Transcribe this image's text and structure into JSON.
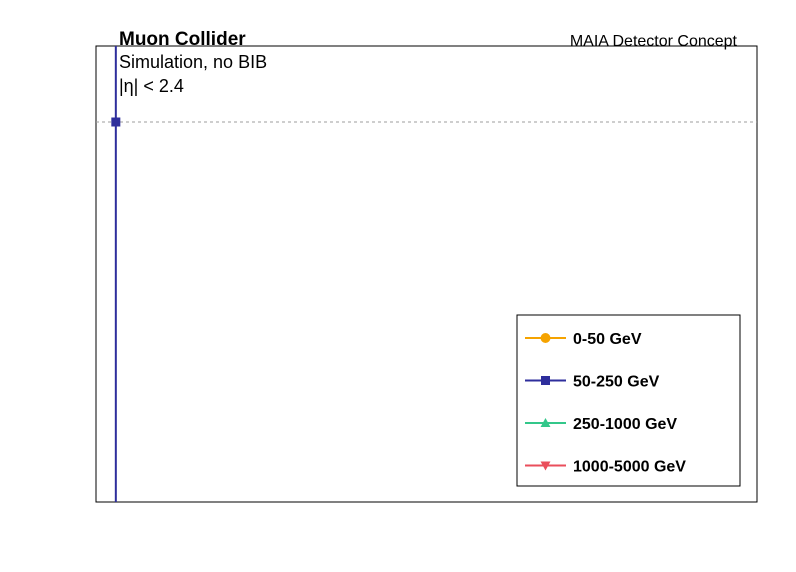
{
  "chart_data": {
    "type": "line",
    "title": "",
    "xlabel": "",
    "ylabel": "",
    "annotations": {
      "experiment": "Muon Collider",
      "detector": "MAIA Detector Concept",
      "sample": "Simulation, no BIB",
      "cut": "|η| < 2.4"
    },
    "reference_line": {
      "style": "dashed",
      "color": "#9e9e9e",
      "y": 1.0
    },
    "ylim": [
      0,
      1.2
    ],
    "xlim": [
      0,
      100
    ],
    "legend": {
      "placement": "bottom-right"
    },
    "series": [
      {
        "name": "0-50 GeV",
        "color": "#f5a300",
        "marker": "circle",
        "points": []
      },
      {
        "name": "50-250 GeV",
        "color": "#2e2e9c",
        "marker": "square",
        "points": [
          {
            "x": 3,
            "y": 1.0
          }
        ],
        "vertical_line_x": 3
      },
      {
        "name": "250-1000 GeV",
        "color": "#33c78a",
        "marker": "triangle-up",
        "points": []
      },
      {
        "name": "1000-5000 GeV",
        "color": "#ea4e5b",
        "marker": "triangle-down",
        "points": []
      }
    ]
  }
}
